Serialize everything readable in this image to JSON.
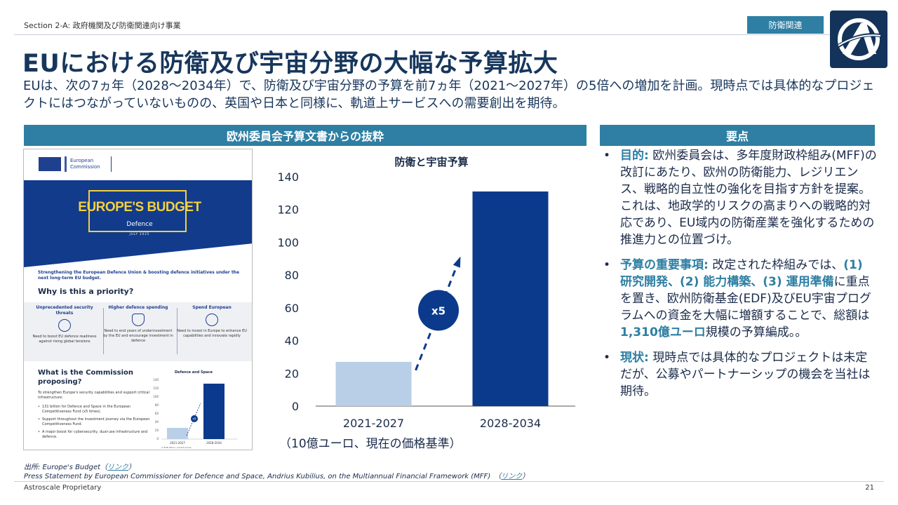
{
  "header": {
    "section": "Section 2-A: 政府機関及び防衛関連向け事業",
    "tag": "防衛関連",
    "title": "EUにおける防衛及び宇宙分野の大幅な予算拡大",
    "subtitle": "EUは、次の7ヵ年（2028～2034年）で、防衛及び宇宙分野の予算を前7ヵ年（2021～2027年）の5倍への増加を計画。現時点では具体的なプロジェクトにはつながっていないものの、英国や日本と同様に、軌道上サービスへの需要創出を期待。"
  },
  "left_panel": {
    "heading": "欧州委員会予算文書からの抜粋"
  },
  "right_panel": {
    "heading": "要点"
  },
  "doc": {
    "org_line1": "European",
    "org_line2": "Commission",
    "hero_title": "EUROPE'S BUDGET",
    "hero_sub": "Defence",
    "hero_date": "JULY 2025",
    "intro": "Strengthening the European Defence Union & boosting defence initiatives under the next long-term EU budget.",
    "why": "Why is this a priority?",
    "priorities": [
      {
        "title": "Unprecedented security threats",
        "text": "Need to boost EU defence readiness against rising global tensions"
      },
      {
        "title": "Higher defence spending",
        "text": "Need to end years of underinvestment by the EU and encourage investment in defence"
      },
      {
        "title": "Spend European",
        "text": "Need to invest in Europe to enhance EU capabilities and innovate rapidly"
      }
    ],
    "what": "What is the Commission proposing?",
    "strengthen": "To strengthen Europe's security capabilities and support critical infrastructure:",
    "bullets": [
      "131 billion for Defence and Space in the European Competitiveness Fund (x5 times).",
      "Support throughout the investment journey via the European Competitiveness Fund.",
      "A major boost for cybersecurity, dual-use infrastructure and defence."
    ],
    "mini_chart_title": "Defence and Space",
    "mini_chart_note": "in EUR billion, current prices"
  },
  "chart_data": {
    "type": "bar",
    "title": "防衛と宇宙予算",
    "categories": [
      "2021-2027",
      "2028-2034"
    ],
    "values": [
      27,
      131
    ],
    "ylim": [
      0,
      140
    ],
    "yticks": [
      0,
      20,
      40,
      60,
      80,
      100,
      120,
      140
    ],
    "unit_label": "（10億ユーロ、現在の価格基準）",
    "annotation": "x5",
    "colors": [
      "#b9cfe8",
      "#0b3a8c"
    ]
  },
  "points": [
    {
      "label": "目的:",
      "text": "欧州委員会は、多年度財政枠組み(MFF)の改訂にあたり、欧州の防衛能力、レジリエンス、戦略的自立性の強化を目指す方針を提案。これは、地政学的リスクの高まりへの戦略的対応であり、EU域内の防衛産業を強化するための推進力との位置づけ。"
    },
    {
      "label": "予算の重要事項:",
      "pre": "改定された枠組みでは、",
      "hl1": "(1) 研究開発、(2) 能力構築、(3) 運用準備",
      "mid": "に重点を置き、欧州防衛基金(EDF)及びEU宇宙プログラムへの資金を大幅に増額することで、総額は",
      "hl2": "1,310億ユーロ",
      "post": "規模の予算編成。。"
    },
    {
      "label": "現状:",
      "text": "現時点では具体的なプロジェクトは未定だが、公募やパートナーシップの機会を当社は期待。"
    }
  ],
  "bullet_char": "•",
  "source": {
    "line1_prefix": "出所: Europe's Budget（",
    "line2_prefix": "Press Statement by European Commissioner for Defence and Space, Andrius Kubilius, on the Multiannual Financial Framework (MFF)　（",
    "link": "リンク",
    "suffix": "）"
  },
  "footer": {
    "left": "Astroscale Proprietary",
    "page": "21"
  }
}
